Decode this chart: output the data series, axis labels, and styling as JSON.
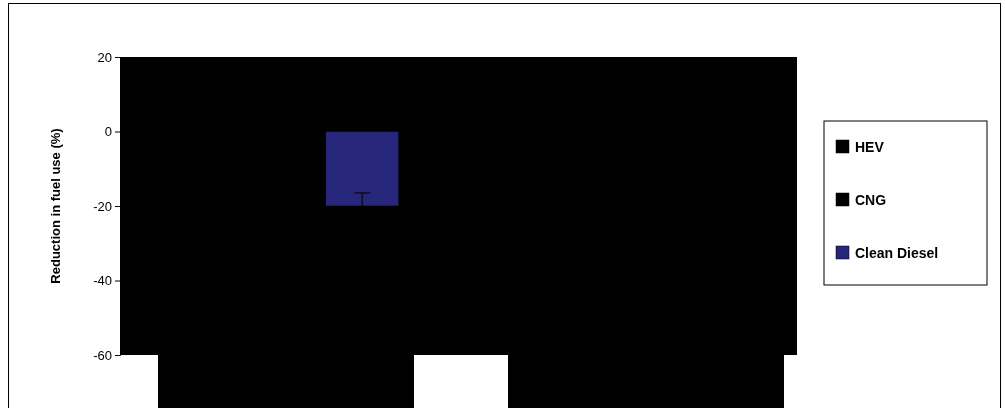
{
  "chart_data": {
    "type": "bar",
    "ylabel": "Reduction in fuel use (%)",
    "categories": [
      null
    ],
    "series": [
      {
        "name": "HEV",
        "color": "#000000",
        "values": [
          null
        ]
      },
      {
        "name": "CNG",
        "color": "#000000",
        "values": [
          null
        ]
      },
      {
        "name": "Clean Diesel",
        "color": "#26267a",
        "values": [
          -20
        ],
        "errors": [
          [
            -20,
            -16.5
          ]
        ]
      }
    ],
    "ylim": [
      -60,
      20
    ],
    "yticks": [
      -60,
      -40,
      -20,
      0,
      20
    ],
    "legend": "right",
    "grid": false
  }
}
